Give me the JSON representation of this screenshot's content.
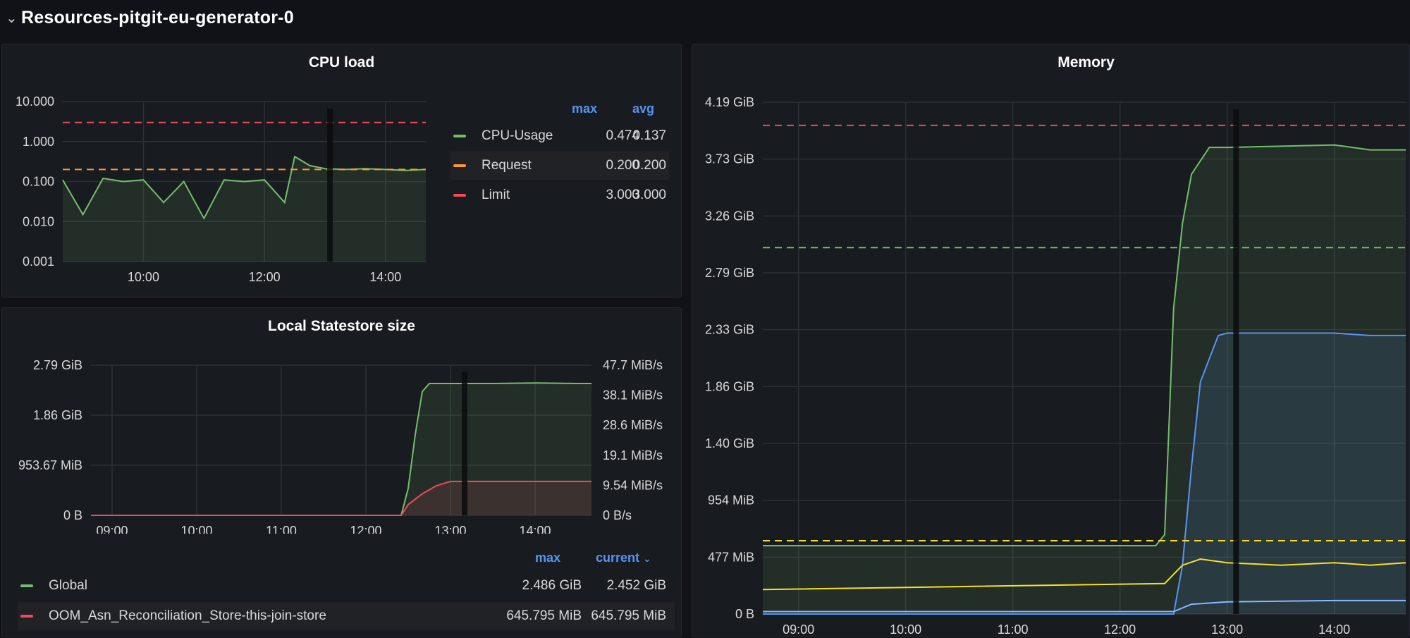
{
  "row": {
    "title": "Resources-pitgit-eu-generator-0",
    "chevron_icon": "chevron-down-icon"
  },
  "colors": {
    "green": "#73bf69",
    "orange": "#ff9830",
    "red": "#f2495c",
    "yellow": "#fade2a",
    "blue": "#5794f2",
    "cyan": "#8ab8ff",
    "legend_header": "#5794f2"
  },
  "panels": {
    "cpu": {
      "title": "CPU load",
      "legend": {
        "headers": [
          "max",
          "avg"
        ],
        "rows": [
          {
            "name": "CPU-Usage",
            "color": "#73bf69",
            "max": "0.474",
            "avg": "0.137"
          },
          {
            "name": "Request",
            "color": "#ff9830",
            "max": "0.200",
            "avg": "0.200"
          },
          {
            "name": "Limit",
            "color": "#f2495c",
            "max": "3.000",
            "avg": "3.000"
          }
        ]
      }
    },
    "statestore": {
      "title": "Local Statestore size",
      "legend": {
        "headers": [
          "max",
          "current"
        ],
        "sort_icon": "chevron-down-icon",
        "rows": [
          {
            "name": "Global",
            "color": "#73bf69",
            "max": "2.486 GiB",
            "current": "2.452 GiB"
          },
          {
            "name": "OOM_Asn_Reconciliation_Store-this-join-store",
            "color": "#f2495c",
            "max": "645.795 MiB",
            "current": "645.795 MiB"
          }
        ]
      }
    },
    "memory": {
      "title": "Memory"
    }
  },
  "chart_data": [
    {
      "type": "line",
      "title": "CPU load",
      "yscale": "log",
      "ylim": [
        0.001,
        10
      ],
      "yticks": [
        "10.000",
        "1.000",
        "0.100",
        "0.010",
        "0.001"
      ],
      "xticks": [
        "10:00",
        "12:00",
        "14:00"
      ],
      "xlim": [
        "08:40",
        "14:40"
      ],
      "series": [
        {
          "name": "CPU-Usage",
          "color": "#73bf69",
          "style": "solid-fill",
          "x": [
            "08:40",
            "09:00",
            "09:20",
            "09:40",
            "10:00",
            "10:20",
            "10:40",
            "11:00",
            "11:20",
            "11:40",
            "12:00",
            "12:20",
            "12:30",
            "12:45",
            "13:00",
            "13:20",
            "13:40",
            "14:00",
            "14:20",
            "14:40"
          ],
          "y": [
            0.11,
            0.015,
            0.12,
            0.1,
            0.11,
            0.03,
            0.1,
            0.012,
            0.11,
            0.1,
            0.11,
            0.03,
            0.42,
            0.25,
            0.21,
            0.2,
            0.21,
            0.2,
            0.19,
            0.2
          ]
        },
        {
          "name": "Request",
          "color": "#ff9830",
          "style": "dashed",
          "x": [
            "08:40",
            "14:40"
          ],
          "y": [
            0.2,
            0.2
          ]
        },
        {
          "name": "Limit",
          "color": "#f2495c",
          "style": "dashed",
          "x": [
            "08:40",
            "14:40"
          ],
          "y": [
            3.0,
            3.0
          ]
        }
      ]
    },
    {
      "type": "line",
      "title": "Local Statestore size",
      "yticks_left": [
        "2.79 GiB",
        "1.86 GiB",
        "953.67 MiB",
        "0 B"
      ],
      "yticks_right": [
        "47.7 MiB/s",
        "38.1 MiB/s",
        "28.6 MiB/s",
        "19.1 MiB/s",
        "9.54 MiB/s",
        "0 B/s"
      ],
      "ylim_gib": [
        0,
        2.79
      ],
      "xticks": [
        "09:00",
        "10:00",
        "11:00",
        "12:00",
        "13:00",
        "14:00"
      ],
      "xlim": [
        "08:45",
        "14:40"
      ],
      "series": [
        {
          "name": "Global",
          "color": "#73bf69",
          "unit": "GiB",
          "x": [
            "08:45",
            "12:25",
            "12:30",
            "12:35",
            "12:40",
            "12:45",
            "13:00",
            "13:30",
            "14:00",
            "14:30",
            "14:40"
          ],
          "y": [
            0,
            0,
            0.5,
            1.5,
            2.3,
            2.45,
            2.45,
            2.45,
            2.46,
            2.45,
            2.45
          ]
        },
        {
          "name": "OOM_Asn_Reconciliation_Store-this-join-store",
          "color": "#f2495c",
          "unit": "GiB",
          "x": [
            "08:45",
            "12:25",
            "12:30",
            "12:40",
            "12:50",
            "13:00",
            "13:30",
            "14:00",
            "14:40"
          ],
          "y": [
            0,
            0,
            0.2,
            0.4,
            0.55,
            0.63,
            0.63,
            0.63,
            0.63
          ]
        }
      ]
    },
    {
      "type": "line",
      "title": "Memory",
      "yticks": [
        "4.19 GiB",
        "3.73 GiB",
        "3.26 GiB",
        "2.79 GiB",
        "2.33 GiB",
        "1.86 GiB",
        "1.40 GiB",
        "954 MiB",
        "477 MiB",
        "0 B"
      ],
      "ylim_gib": [
        0,
        4.19
      ],
      "xticks": [
        "09:00",
        "10:00",
        "11:00",
        "12:00",
        "13:00",
        "14:00"
      ],
      "xlim": [
        "08:40",
        "14:40"
      ],
      "series": [
        {
          "name": "",
          "color": "#73bf69",
          "style": "solid-fill",
          "x": [
            "08:40",
            "12:20",
            "12:25",
            "12:30",
            "12:35",
            "12:40",
            "12:50",
            "13:00",
            "14:00",
            "14:20",
            "14:40"
          ],
          "y": [
            0.56,
            0.56,
            0.65,
            2.5,
            3.2,
            3.6,
            3.82,
            3.82,
            3.84,
            3.8,
            3.8
          ]
        },
        {
          "name": "",
          "color": "#5794f2",
          "style": "solid-fill",
          "x": [
            "08:40",
            "12:30",
            "12:35",
            "12:40",
            "12:45",
            "12:55",
            "13:00",
            "14:00",
            "14:20",
            "14:40"
          ],
          "y": [
            0,
            0,
            0.4,
            1.2,
            1.9,
            2.28,
            2.3,
            2.3,
            2.28,
            2.28
          ]
        },
        {
          "name": "",
          "color": "#fade2a",
          "style": "solid",
          "x": [
            "08:40",
            "12:25",
            "12:35",
            "12:45",
            "13:00",
            "13:30",
            "14:00",
            "14:20",
            "14:40"
          ],
          "y": [
            0.2,
            0.25,
            0.4,
            0.45,
            0.42,
            0.4,
            0.42,
            0.4,
            0.42
          ]
        },
        {
          "name": "",
          "color": "#8ab8ff",
          "style": "solid",
          "x": [
            "08:40",
            "12:30",
            "12:40",
            "13:00",
            "14:00",
            "14:40"
          ],
          "y": [
            0.02,
            0.02,
            0.08,
            0.1,
            0.11,
            0.11
          ]
        },
        {
          "name": "",
          "color": "#f2495c",
          "style": "dashed",
          "x": [
            "08:40",
            "14:40"
          ],
          "y": [
            4.0,
            4.0
          ]
        },
        {
          "name": "",
          "color": "#73bf69",
          "style": "dashed",
          "x": [
            "08:40",
            "14:40"
          ],
          "y": [
            3.0,
            3.0
          ]
        },
        {
          "name": "",
          "color": "#fade2a",
          "style": "dashed",
          "x": [
            "08:40",
            "14:40"
          ],
          "y": [
            0.6,
            0.6
          ]
        }
      ]
    }
  ]
}
